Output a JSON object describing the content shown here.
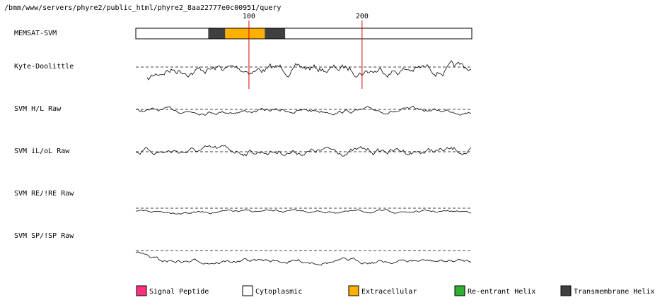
{
  "path": "/bmm/www/servers/phyre2/public_html/phyre2_8aa22777e0c00951/query",
  "ruler": {
    "ticks": [
      100,
      200
    ]
  },
  "tracks": [
    "MEMSAT-SVM",
    "Kyte-Doolittle",
    "SVM H/L Raw",
    "SVM iL/oL Raw",
    "SVM RE/!RE Raw",
    "SVM SP/!SP Raw"
  ],
  "memsat": {
    "length": 297,
    "segments": [
      {
        "start": 64,
        "end": 79,
        "color": "#404040"
      },
      {
        "start": 79,
        "end": 114,
        "color": "#ffb000"
      },
      {
        "start": 114,
        "end": 132,
        "color": "#404040"
      }
    ]
  },
  "legend": [
    {
      "label": "Signal Peptide",
      "color": "#ff3080"
    },
    {
      "label": "Cytoplasmic",
      "color": "#ffffff"
    },
    {
      "label": "Extracellular",
      "color": "#ffb000"
    },
    {
      "label": "Re-entrant Helix",
      "color": "#30b030"
    },
    {
      "label": "Transmembrane Helix",
      "color": "#404040"
    }
  ]
}
